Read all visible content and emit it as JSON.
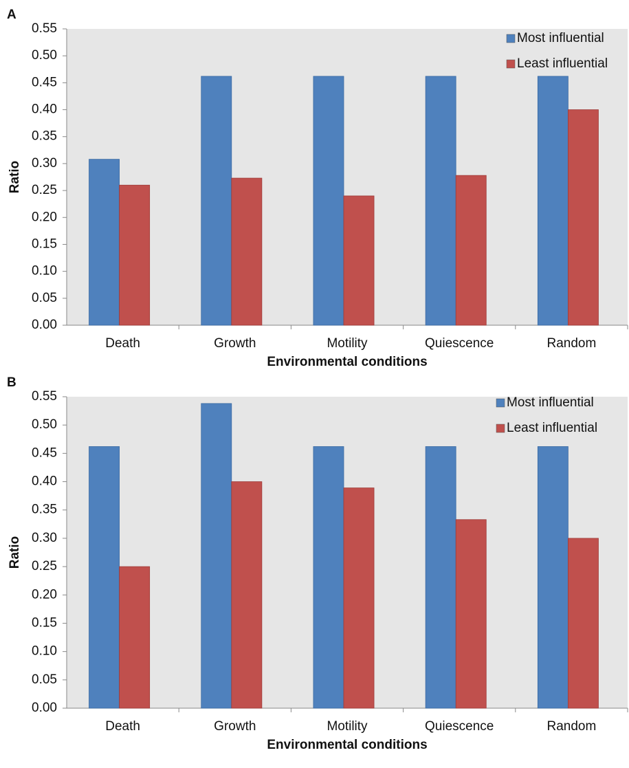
{
  "chart_data": [
    {
      "type": "bar",
      "panel_label": "A",
      "y_label": "Ratio",
      "x_label": "Environmental conditions",
      "categories": [
        "Death",
        "Growth",
        "Motility",
        "Quiescence",
        "Random"
      ],
      "series": [
        {
          "name": "Most influential",
          "color": "#4f81bd",
          "values": [
            0.308,
            0.462,
            0.462,
            0.462,
            0.462
          ]
        },
        {
          "name": "Least influential",
          "color": "#c0504d",
          "values": [
            0.26,
            0.273,
            0.24,
            0.278,
            0.4
          ]
        }
      ],
      "ylim": [
        0,
        0.55
      ],
      "yticks": [
        {
          "value": 0,
          "label": "0.00"
        },
        0.05,
        {
          "value": 0.1,
          "label": "0.10"
        },
        0.15,
        {
          "value": 0.2,
          "label": "0.20"
        },
        0.25,
        {
          "value": 0.3,
          "label": "0.30"
        },
        0.35,
        {
          "value": 0.4,
          "label": "0.40"
        },
        0.45,
        {
          "value": 0.5,
          "label": "0.50"
        },
        0.55
      ],
      "legend": "top-right",
      "background": "#e6e6e6"
    },
    {
      "type": "bar",
      "panel_label": "B",
      "y_label": "Ratio",
      "x_label": "Environmental conditions",
      "categories": [
        "Death",
        "Growth",
        "Motility",
        "Quiescence",
        "Random"
      ],
      "series": [
        {
          "name": "Most influential",
          "color": "#4f81bd",
          "values": [
            0.462,
            0.538,
            0.462,
            0.462,
            0.462
          ]
        },
        {
          "name": "Least influential",
          "color": "#c0504d",
          "values": [
            0.25,
            0.4,
            0.389,
            0.333,
            0.3
          ]
        }
      ],
      "ylim": [
        0,
        0.55
      ],
      "yticks": [
        {
          "value": 0,
          "label": "0.00"
        },
        0.05,
        {
          "value": 0.1,
          "label": "0.10"
        },
        0.15,
        {
          "value": 0.2,
          "label": "0.20"
        },
        0.25,
        {
          "value": 0.3,
          "label": "0.30"
        },
        0.35,
        {
          "value": 0.4,
          "label": "0.40"
        },
        0.45,
        {
          "value": 0.5,
          "label": "0.50"
        },
        0.55
      ],
      "legend": "top-right",
      "background": "#e6e6e6"
    }
  ]
}
